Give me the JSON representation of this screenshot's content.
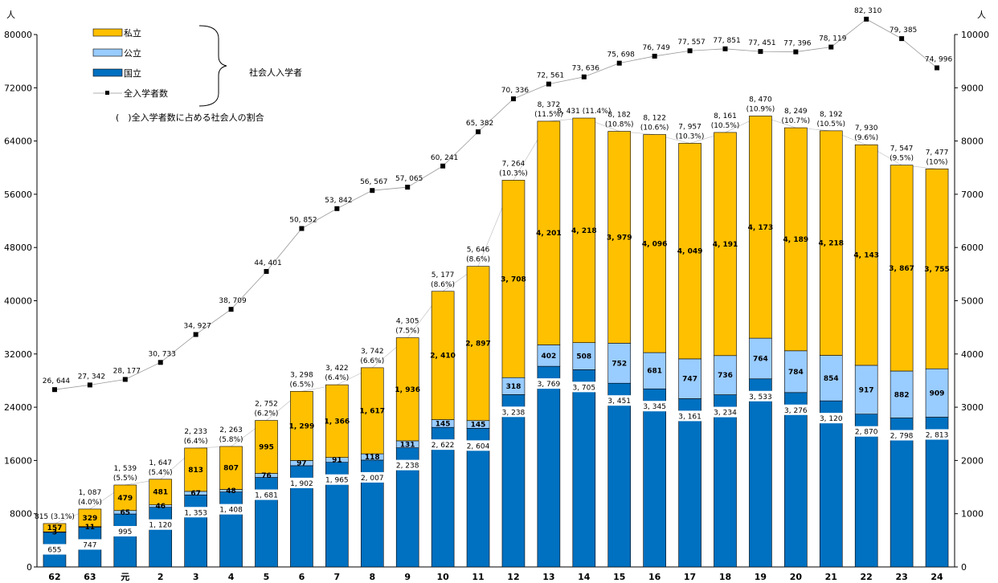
{
  "chart_data": {
    "type": "bar",
    "left_unit": "人",
    "right_unit": "人",
    "left_ylim": [
      0,
      80000
    ],
    "left_ticks": [
      0,
      8000,
      16000,
      24000,
      32000,
      40000,
      48000,
      56000,
      64000,
      72000,
      80000
    ],
    "right_ylim": [
      0,
      10000
    ],
    "right_ticks": [
      0,
      1000,
      2000,
      3000,
      4000,
      5000,
      6000,
      7000,
      8000,
      9000,
      10000
    ],
    "categories": [
      "62",
      "63",
      "元",
      "2",
      "3",
      "4",
      "5",
      "6",
      "7",
      "8",
      "9",
      "10",
      "11",
      "12",
      "13",
      "14",
      "15",
      "16",
      "17",
      "18",
      "19",
      "20",
      "21",
      "22",
      "23",
      "24"
    ],
    "national_labels": [
      "655",
      "747",
      "995",
      "1, 120",
      "1, 353",
      "1, 408",
      "1, 681",
      "1, 902",
      "1, 965",
      "2, 007",
      "2, 238",
      "2, 622",
      "2, 604",
      "3, 238",
      "3, 769",
      "3, 705",
      "3, 451",
      "3, 345",
      "3, 161",
      "3, 234",
      "3, 533",
      "3, 276",
      "3, 120",
      "2, 870",
      "2, 798",
      "2, 813"
    ],
    "public_labels": [
      "3",
      "11",
      "65",
      "46",
      "67",
      "48",
      "76",
      "97",
      "91",
      "118",
      "131",
      "145",
      "145",
      "318",
      "402",
      "508",
      "752",
      "681",
      "747",
      "736",
      "764",
      "784",
      "854",
      "917",
      "882",
      "909"
    ],
    "private_labels": [
      "157",
      "329",
      "479",
      "481",
      "813",
      "807",
      "995",
      "1, 299",
      "1, 366",
      "1, 617",
      "1, 936",
      "2, 410",
      "2, 897",
      "3, 708",
      "4, 201",
      "4, 218",
      "3, 979",
      "4, 096",
      "4, 049",
      "4, 191",
      "4, 173",
      "4, 189",
      "4, 218",
      "4, 143",
      "3, 867",
      "3, 755"
    ],
    "series": [
      {
        "name": "国立",
        "color": "#0070C0",
        "values": [
          655,
          747,
          995,
          1120,
          1353,
          1408,
          1681,
          1902,
          1965,
          2007,
          2238,
          2622,
          2604,
          3238,
          3769,
          3705,
          3451,
          3345,
          3161,
          3234,
          3533,
          3276,
          3120,
          2870,
          2798,
          2813
        ]
      },
      {
        "name": "公立",
        "color": "#99CCFF",
        "values": [
          3,
          11,
          65,
          46,
          67,
          48,
          76,
          97,
          91,
          118,
          131,
          145,
          145,
          318,
          402,
          508,
          752,
          681,
          747,
          736,
          764,
          784,
          854,
          917,
          882,
          909
        ]
      },
      {
        "name": "私立",
        "color": "#FFC000",
        "values": [
          157,
          329,
          479,
          481,
          813,
          807,
          995,
          1299,
          1366,
          1617,
          1936,
          2410,
          2897,
          3708,
          4201,
          4218,
          3979,
          4096,
          4049,
          4191,
          4173,
          4189,
          4218,
          4143,
          3867,
          3755
        ]
      }
    ],
    "total_labels": [
      "815 (3.1%)",
      "1, 087\n(4.0%)",
      "1, 539\n(5.5%)",
      "1, 647\n(5.4%)",
      "2, 233\n(6.4%)",
      "2, 263\n(5.8%)",
      "2, 752\n(6.2%)",
      "3, 298\n(6.5%)",
      "3, 422\n(6.4%)",
      "3, 742\n(6.6%)",
      "4, 305\n(7.5%)",
      "5, 177\n(8.6%)",
      "5, 646\n(8.6%)",
      "7, 264\n(10.3%)",
      "8, 372\n(11.5%)",
      "8, 431 (11.4%)",
      "8, 182\n(10.8%)",
      "8, 122\n(10.6%)",
      "7, 957\n(10.3%)",
      "8, 161\n(10.5%)",
      "8, 470\n(10.9%)",
      "8, 249\n(10.7%)",
      "8, 192\n(10.5%)",
      "7, 930\n(9.6%)",
      "7, 547\n(9.5%)",
      "7, 477\n(10%)"
    ],
    "all_entrants": {
      "name": "全入学者数",
      "values": [
        26644,
        27342,
        28177,
        30733,
        34927,
        38709,
        44401,
        50852,
        53842,
        56567,
        57065,
        60241,
        65382,
        70336,
        72561,
        73636,
        75698,
        76749,
        77557,
        77851,
        77451,
        77396,
        78119,
        82310,
        79385,
        74996
      ],
      "labels": [
        "26, 644",
        "27, 342",
        "28, 177",
        "30, 733",
        "34, 927",
        "38, 709",
        "44, 401",
        "50, 852",
        "53, 842",
        "56, 567",
        "57, 065",
        "60, 241",
        "65, 382",
        "70, 336",
        "72, 561",
        "73, 636",
        "75, 698",
        "76, 749",
        "77, 557",
        "77, 851",
        "77, 451",
        "77, 396",
        "78, 119",
        "82, 310",
        "79, 385",
        "74, 996"
      ]
    },
    "legend": {
      "placement": "top-left",
      "items": [
        {
          "key": "private",
          "label": "私立",
          "color": "#FFC000"
        },
        {
          "key": "public",
          "label": "公立",
          "color": "#99CCFF"
        },
        {
          "key": "national",
          "label": "国立",
          "color": "#0070C0"
        },
        {
          "key": "all",
          "label": "全入学者数",
          "color": "#000000"
        }
      ],
      "group_label": "社会人入学者",
      "note": "(　)全入学者数に占める社会人の割合"
    }
  }
}
